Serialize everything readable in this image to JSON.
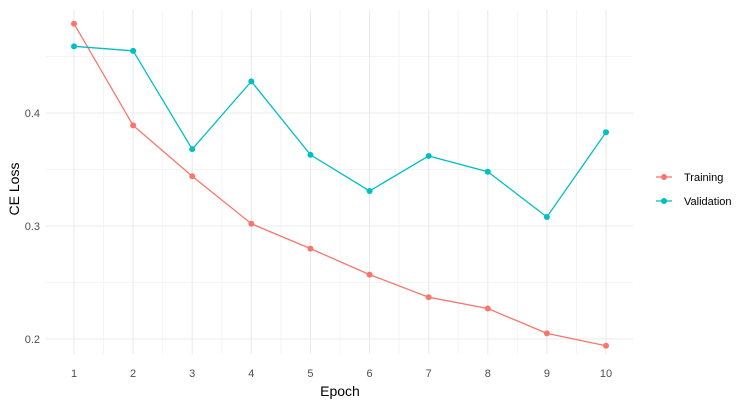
{
  "chart_data": {
    "type": "line",
    "title": "",
    "xlabel": "Epoch",
    "ylabel": "CE Loss",
    "x": [
      1,
      2,
      3,
      4,
      5,
      6,
      7,
      8,
      9,
      10
    ],
    "x_ticks": [
      "1",
      "2",
      "3",
      "4",
      "5",
      "6",
      "7",
      "8",
      "9",
      "10"
    ],
    "y_ticks": [
      "0.2",
      "0.3",
      "0.4"
    ],
    "ylim": [
      0.19,
      0.48
    ],
    "xlim": [
      1,
      10
    ],
    "grid": true,
    "legend_position": "right",
    "series": [
      {
        "name": "Training",
        "color": "#F8766D",
        "values": [
          0.479,
          0.389,
          0.344,
          0.302,
          0.28,
          0.257,
          0.237,
          0.227,
          0.205,
          0.194
        ]
      },
      {
        "name": "Validation",
        "color": "#00BFC4",
        "values": [
          0.459,
          0.455,
          0.368,
          0.428,
          0.363,
          0.331,
          0.362,
          0.348,
          0.308,
          0.383
        ]
      }
    ]
  }
}
